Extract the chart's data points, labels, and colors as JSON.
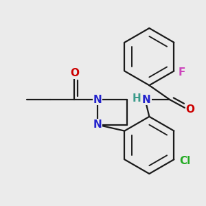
{
  "background_color": "#ebebeb",
  "bond_color": "#1a1a1a",
  "bond_lw": 1.6,
  "dbo": 0.012,
  "figsize": [
    3.0,
    3.0
  ],
  "dpi": 100,
  "colors": {
    "O": "#cc0000",
    "N": "#2222cc",
    "H": "#3a9a8a",
    "F": "#cc44bb",
    "Cl": "#22aa22",
    "bond": "#1a1a1a"
  }
}
